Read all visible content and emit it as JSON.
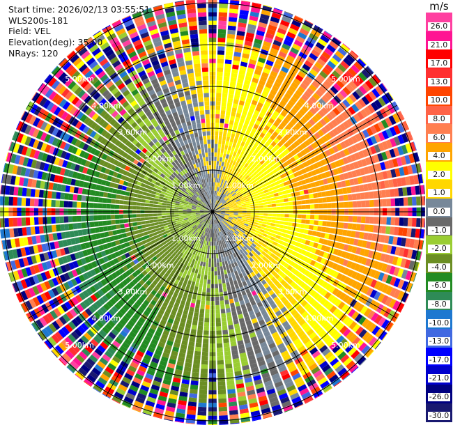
{
  "header": {
    "start_time": "Start time: 2026/02/13 03:55:51",
    "instrument": "WLS200s-181",
    "field": "Field: VEL",
    "elevation": "Elevation(deg): 35.00",
    "nrays": "NRays: 120"
  },
  "chart_data": {
    "type": "heatmap",
    "projection": "polar PPI",
    "field": "VEL",
    "units": "m/s",
    "n_rays": 120,
    "elevation_deg": 35.0,
    "range_rings_km": [
      1,
      2,
      3,
      4,
      5
    ],
    "range_ring_labels": [
      "1.00km",
      "2.00km",
      "3.00km",
      "4.00km",
      "5.00km"
    ],
    "spoke_interval_deg": 30,
    "colorbar": {
      "unit_label": "m/s",
      "tick_labels": [
        "26.0",
        "21.0",
        "17.0",
        "13.0",
        "10.0",
        "8.0",
        "6.0",
        "4.0",
        "2.0",
        "1.0",
        "0.0",
        "-1.0",
        "-2.0",
        "-4.0",
        "-6.0",
        "-8.0",
        "-10.0",
        "-13.0",
        "-17.0",
        "-21.0",
        "-26.0",
        "-30.0"
      ],
      "levels": [
        26,
        21,
        17,
        13,
        10,
        8,
        6,
        4,
        2,
        1,
        0,
        -1,
        -2,
        -4,
        -6,
        -8,
        -10,
        -13,
        -17,
        -21,
        -26,
        -30
      ],
      "colors": [
        "#ff3fa0",
        "#ff1493",
        "#ff0000",
        "#ff3030",
        "#ff4500",
        "#ff6347",
        "#ff7f50",
        "#ffa500",
        "#ffff00",
        "#ffd700",
        "#778899",
        "#696969",
        "#9acd32",
        "#6b8e23",
        "#228b22",
        "#2e8b57",
        "#1e78d0",
        "#4169e1",
        "#0000ff",
        "#0000cd",
        "#000080",
        "#191970"
      ]
    },
    "pattern": {
      "positive_sector": "northeast-east",
      "negative_sector": "southwest-west",
      "near_range": "near 0 m/s",
      "far_range": "noisy"
    }
  }
}
